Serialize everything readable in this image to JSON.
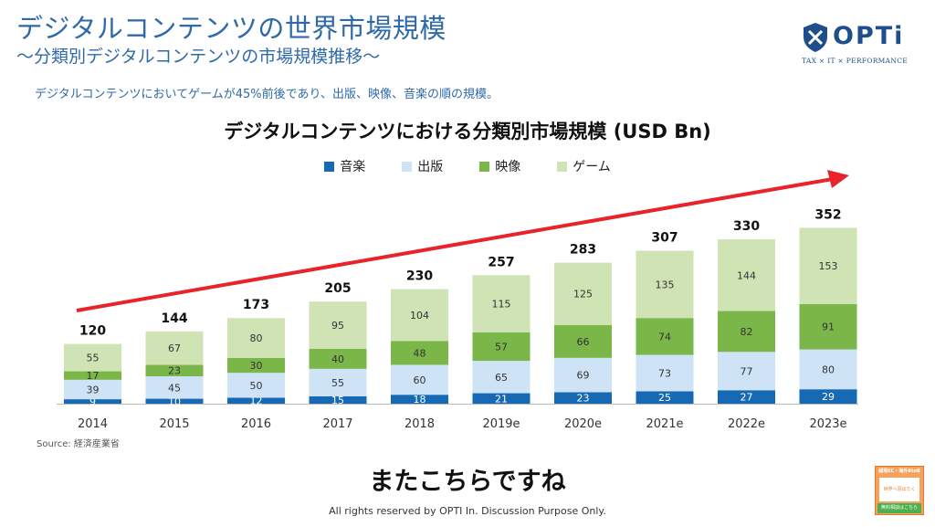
{
  "page": {
    "title": "デジタルコンテンツの世界市場規模",
    "subtitle": "〜分類別デジタルコンテンツの市場規模推移〜",
    "note": "デジタルコンテンツにおいてゲームが45%前後であり、出版、映像、音楽の順の規模。",
    "source": "Source: 経済産業省",
    "caption": "またこちらですね",
    "footer": "All rights reserved by OPTI In. Discussion Purpose Only.",
    "logo_text": "OPTi",
    "logo_tagline": "TAX × IT × PERFORMANCE",
    "badge_top": "越境EC・海外BtoB",
    "badge_mid": "世界へ羽ばたく",
    "badge_bottom": "無料相談はこちら"
  },
  "colors": {
    "title": "#2f6aa8",
    "music": "#1769b3",
    "publishing": "#cfe3f7",
    "video": "#7ab648",
    "game": "#cfe3b5",
    "arrow": "#e8242a"
  },
  "chart_data": {
    "type": "bar",
    "stacked": true,
    "title": "デジタルコンテンツにおける分類別市場規模 (USD Bn)",
    "categories": [
      "2014",
      "2015",
      "2016",
      "2017",
      "2018",
      "2019e",
      "2020e",
      "2021e",
      "2022e",
      "2023e"
    ],
    "series": [
      {
        "name": "音楽",
        "color": "#1769b3",
        "values": [
          9,
          10,
          12,
          15,
          18,
          21,
          23,
          25,
          27,
          29
        ]
      },
      {
        "name": "出版",
        "color": "#cfe3f7",
        "values": [
          39,
          45,
          50,
          55,
          60,
          65,
          69,
          73,
          77,
          80
        ]
      },
      {
        "name": "映像",
        "color": "#7ab648",
        "values": [
          17,
          23,
          30,
          40,
          48,
          57,
          66,
          74,
          82,
          91
        ]
      },
      {
        "name": "ゲーム",
        "color": "#cfe3b5",
        "values": [
          55,
          67,
          80,
          95,
          104,
          115,
          125,
          135,
          144,
          153
        ]
      }
    ],
    "totals": [
      120,
      144,
      173,
      205,
      230,
      257,
      283,
      307,
      330,
      352
    ],
    "ylim": [
      0,
      352
    ],
    "legend_position": "top",
    "grid": false,
    "trend_arrow": true
  }
}
